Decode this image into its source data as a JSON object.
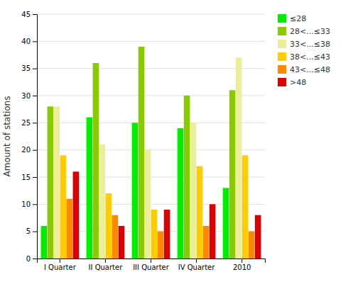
{
  "chart_data": {
    "type": "bar",
    "categories": [
      "I Quarter",
      "II Quarter",
      "III Quarter",
      "IV Quarter",
      "2010"
    ],
    "series": [
      {
        "name": "≤28",
        "color": "#00ee00",
        "values": [
          6,
          26,
          25,
          24,
          13
        ]
      },
      {
        "name": "28<...≤33",
        "color": "#88cc00",
        "values": [
          28,
          36,
          39,
          30,
          31
        ]
      },
      {
        "name": "33<...≤38",
        "color": "#eeee99",
        "values": [
          28,
          21,
          20,
          25,
          37
        ]
      },
      {
        "name": "38<...≤43",
        "color": "#ffcc00",
        "values": [
          19,
          12,
          9,
          17,
          19
        ]
      },
      {
        "name": "43<...≤48",
        "color": "#ff8800",
        "values": [
          11,
          8,
          5,
          6,
          5
        ]
      },
      {
        "name": ">48",
        "color": "#dd0000",
        "values": [
          16,
          6,
          9,
          10,
          8
        ]
      }
    ],
    "ylabel": "Amount of stations",
    "ylim": [
      0,
      45
    ],
    "yticks": [
      0,
      5,
      10,
      15,
      20,
      25,
      30,
      35,
      40,
      45
    ],
    "grid": true,
    "legend": "upper right"
  }
}
